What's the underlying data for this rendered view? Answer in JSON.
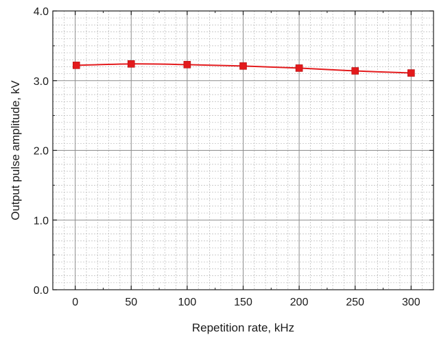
{
  "chart_data": {
    "type": "line",
    "xlabel": "Repetition rate, kHz",
    "ylabel": "Output pulse amplitude, kV",
    "xlim": [
      -20,
      320
    ],
    "ylim": [
      0,
      4
    ],
    "x_ticks": [
      0,
      50,
      100,
      150,
      200,
      250,
      300
    ],
    "x_tick_labels": [
      "0",
      "50",
      "100",
      "150",
      "200",
      "250",
      "300"
    ],
    "y_ticks": [
      0,
      1,
      2,
      3,
      4
    ],
    "y_tick_labels": [
      "0.0",
      "1.0",
      "2.0",
      "3.0",
      "4.0"
    ],
    "grid": true,
    "minor_grid": true,
    "series": [
      {
        "x": [
          1,
          50,
          100,
          150,
          200,
          250,
          300
        ],
        "y": [
          3.22,
          3.24,
          3.23,
          3.21,
          3.18,
          3.14,
          3.11
        ],
        "color": "#e31a1c",
        "marker": "square",
        "line": "smooth"
      }
    ]
  }
}
